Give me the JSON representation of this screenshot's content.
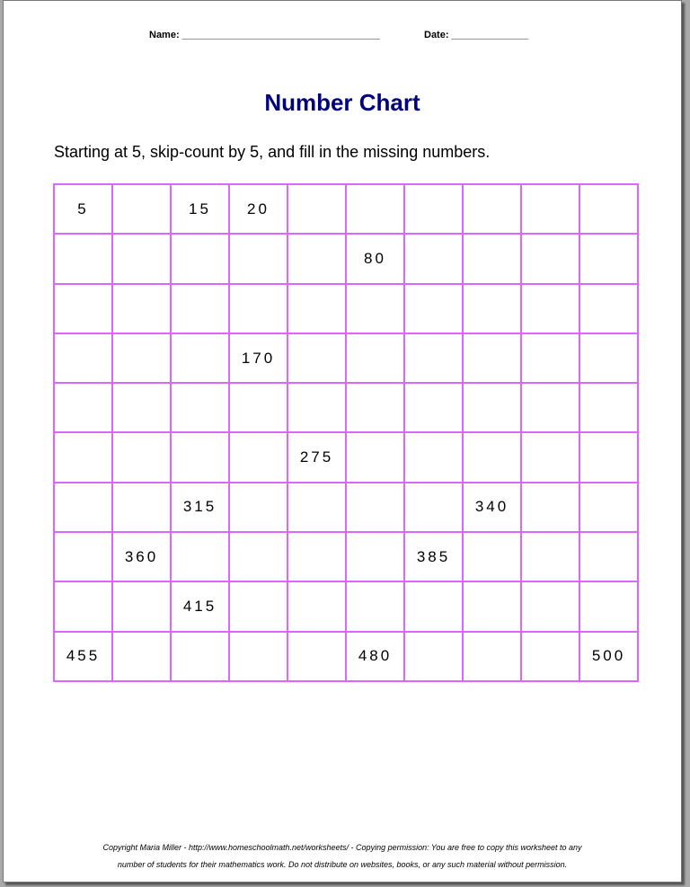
{
  "header": {
    "name_label": "Name: ____________________________________",
    "date_label": "Date: ______________"
  },
  "title": "Number Chart",
  "instructions": "Starting at 5, skip-count by 5, and fill in the missing numbers.",
  "grid": [
    [
      "5",
      "",
      "15",
      "20",
      "",
      "",
      "",
      "",
      "",
      ""
    ],
    [
      "",
      "",
      "",
      "",
      "",
      "80",
      "",
      "",
      "",
      ""
    ],
    [
      "",
      "",
      "",
      "",
      "",
      "",
      "",
      "",
      "",
      ""
    ],
    [
      "",
      "",
      "",
      "170",
      "",
      "",
      "",
      "",
      "",
      ""
    ],
    [
      "",
      "",
      "",
      "",
      "",
      "",
      "",
      "",
      "",
      ""
    ],
    [
      "",
      "",
      "",
      "",
      "275",
      "",
      "",
      "",
      "",
      ""
    ],
    [
      "",
      "",
      "315",
      "",
      "",
      "",
      "",
      "340",
      "",
      ""
    ],
    [
      "",
      "360",
      "",
      "",
      "",
      "",
      "385",
      "",
      "",
      ""
    ],
    [
      "",
      "",
      "415",
      "",
      "",
      "",
      "",
      "",
      "",
      ""
    ],
    [
      "455",
      "",
      "",
      "",
      "",
      "480",
      "",
      "",
      "",
      "500"
    ]
  ],
  "colors": {
    "grid_border": "#dd66ff",
    "title": "#000080"
  },
  "footer": {
    "line1": "Copyright Maria Miller - http://www.homeschoolmath.net/worksheets/ - Copying permission: You are free to copy this worksheet to any",
    "line2": "number of students for their mathematics work. Do not distribute on websites, books, or any such material without permission."
  }
}
